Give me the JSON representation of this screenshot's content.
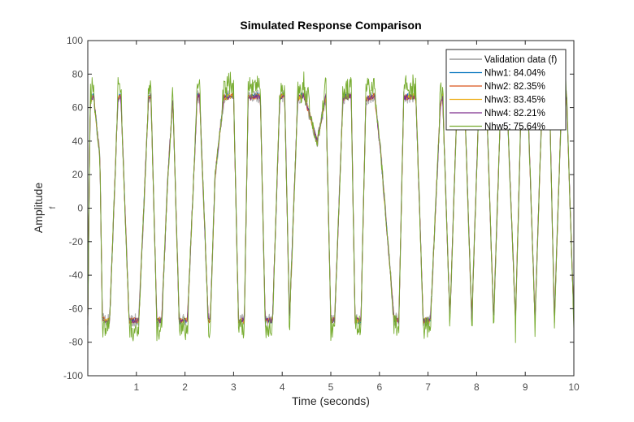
{
  "chart_data": {
    "type": "line",
    "title": "Simulated Response Comparison",
    "xlabel": "Time (seconds)",
    "ylabel": "Amplitude",
    "ylabel_sub": "f",
    "xlim": [
      0,
      10
    ],
    "ylim": [
      -100,
      100
    ],
    "xticks": [
      1,
      2,
      3,
      4,
      5,
      6,
      7,
      8,
      9,
      10
    ],
    "xtick_labels": [
      "1",
      "2",
      "3",
      "4",
      "5",
      "6",
      "7",
      "8",
      "9",
      "10"
    ],
    "yticks": [
      -100,
      -80,
      -60,
      -40,
      -20,
      0,
      20,
      40,
      60,
      80,
      100
    ],
    "ytick_labels": [
      "-100",
      "-80",
      "-60",
      "-40",
      "-20",
      "0",
      "20",
      "40",
      "60",
      "80",
      "100"
    ],
    "grid": false,
    "legend_position": "top-right",
    "switching_profile": {
      "x": [
        0.0,
        0.05,
        0.12,
        0.25,
        0.3,
        0.38,
        0.45,
        0.62,
        0.68,
        0.85,
        1.05,
        1.25,
        1.3,
        1.42,
        1.52,
        1.65,
        1.75,
        1.88,
        2.05,
        2.25,
        2.3,
        2.48,
        2.52,
        2.62,
        2.8,
        3.0,
        3.1,
        3.22,
        3.3,
        3.55,
        3.65,
        3.8,
        3.95,
        4.05,
        4.15,
        4.32,
        4.45,
        4.72,
        4.9,
        5.0,
        5.08,
        5.25,
        5.42,
        5.5,
        5.62,
        5.72,
        5.9,
        6.02,
        6.3,
        6.4,
        6.5,
        6.75,
        6.9,
        7.05,
        7.25,
        7.3,
        7.45,
        7.6,
        7.75,
        7.9,
        8.05,
        8.2,
        8.35,
        8.5,
        8.62,
        8.8,
        8.92,
        9.05,
        9.2,
        9.35,
        9.5,
        9.6,
        9.75,
        9.85,
        10.0
      ],
      "y": [
        -66,
        64,
        67,
        30,
        -66,
        -67,
        -67,
        65,
        67,
        -67,
        -67,
        65,
        67,
        -67,
        -67,
        20,
        66,
        -67,
        -67,
        66,
        67,
        -67,
        -67,
        20,
        66,
        67,
        -67,
        -67,
        66,
        67,
        -67,
        -67,
        66,
        67,
        -67,
        66,
        67,
        40,
        67,
        -67,
        -67,
        66,
        67,
        -67,
        -67,
        65,
        67,
        35,
        -66,
        -67,
        66,
        67,
        -67,
        -67,
        60,
        67,
        -67,
        66,
        67,
        -67,
        66,
        67,
        -67,
        66,
        67,
        -67,
        66,
        67,
        -67,
        66,
        67,
        -67,
        66,
        67,
        -67
      ]
    },
    "series": [
      {
        "name": "Validation data (f)",
        "color": "#b3b3b3",
        "noise": 4.0,
        "overshoot": 0
      },
      {
        "name": "Nhw1: 84.04%",
        "color": "#0072bd",
        "noise": 1.5,
        "overshoot": 1
      },
      {
        "name": "Nhw2: 82.35%",
        "color": "#d95319",
        "noise": 1.8,
        "overshoot": 0
      },
      {
        "name": "Nhw3: 83.45%",
        "color": "#edb120",
        "noise": 1.6,
        "overshoot": 0
      },
      {
        "name": "Nhw4: 82.21%",
        "color": "#7e2f8e",
        "noise": 1.7,
        "overshoot": 0
      },
      {
        "name": "Nhw5: 75.64%",
        "color": "#77ac30",
        "noise": 3.5,
        "overshoot": 14
      }
    ]
  }
}
